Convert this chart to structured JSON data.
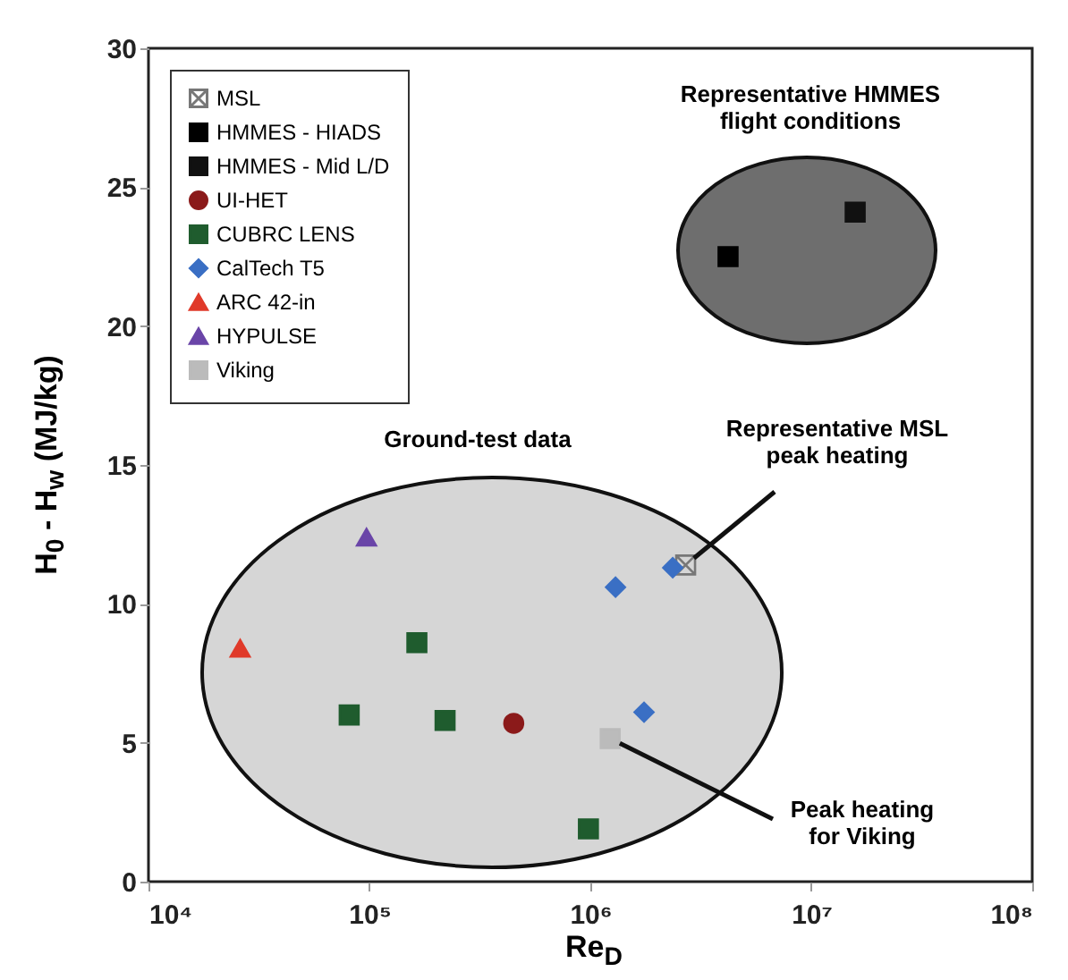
{
  "chart_data": {
    "type": "scatter",
    "xlabel": "Re$_{D}$",
    "ylabel": "H$_{0}$ - H$_{w}$ (MJ/kg)",
    "log": "x",
    "grid": false,
    "legend": "top left",
    "xlim": [
      10000,
      100000000
    ],
    "xticks": [
      {
        "value": 10000,
        "label": "10⁴"
      },
      {
        "value": 100000,
        "label": "10⁵"
      },
      {
        "value": 1000000,
        "label": "10⁶"
      },
      {
        "value": 10000000,
        "label": "10⁷"
      },
      {
        "value": 100000000,
        "label": "10⁸"
      }
    ],
    "ylim": [
      0,
      30
    ],
    "yticks": [
      0,
      5,
      10,
      15,
      20,
      25,
      30
    ],
    "annotations": [
      "Ground-test data",
      "Representative HMMES flight conditions",
      {
        "text": "Representative MSL peak heating",
        "x": 2700000,
        "y": 11.4
      },
      {
        "text": "Peak heating for Viking",
        "x": 1230000,
        "y": 5.15
      }
    ],
    "series": [
      {
        "name": "MSL",
        "color": "#777777",
        "marker": "cross",
        "x": [
          2700000
        ],
        "values": [
          11.4
        ]
      },
      {
        "name": "HMMES - HIADS",
        "color": "#000000",
        "marker": "square",
        "x": [
          4200000
        ],
        "values": [
          22.5
        ]
      },
      {
        "name": "HMMES - Mid L/D",
        "color": "#111111",
        "marker": "square",
        "x": [
          15800000
        ],
        "values": [
          24.1
        ]
      },
      {
        "name": "UI-HET",
        "color": "#8b1a1a",
        "marker": "circle",
        "x": [
          450000
        ],
        "values": [
          5.7
        ]
      },
      {
        "name": "CUBRC LENS",
        "color": "#1f5c2e",
        "marker": "square",
        "x": [
          164000,
          81000,
          220000,
          980000
        ],
        "values": [
          8.6,
          6.0,
          5.8,
          1.9
        ]
      },
      {
        "name": "CalTech T5",
        "color": "#3a6fc4",
        "marker": "diamond",
        "x": [
          1300000,
          2360000,
          1750000
        ],
        "values": [
          10.6,
          11.3,
          6.1
        ]
      },
      {
        "name": "ARC 42-in",
        "color": "#e03a2a",
        "marker": "triangle",
        "x": [
          26000
        ],
        "values": [
          8.4
        ]
      },
      {
        "name": "HYPULSE",
        "color": "#6a45a8",
        "marker": "triangle",
        "x": [
          97000
        ],
        "values": [
          12.4
        ]
      },
      {
        "name": "Viking",
        "color": "#bbbbbb",
        "marker": "square",
        "x": [
          1230000
        ],
        "values": [
          5.15
        ]
      }
    ]
  }
}
